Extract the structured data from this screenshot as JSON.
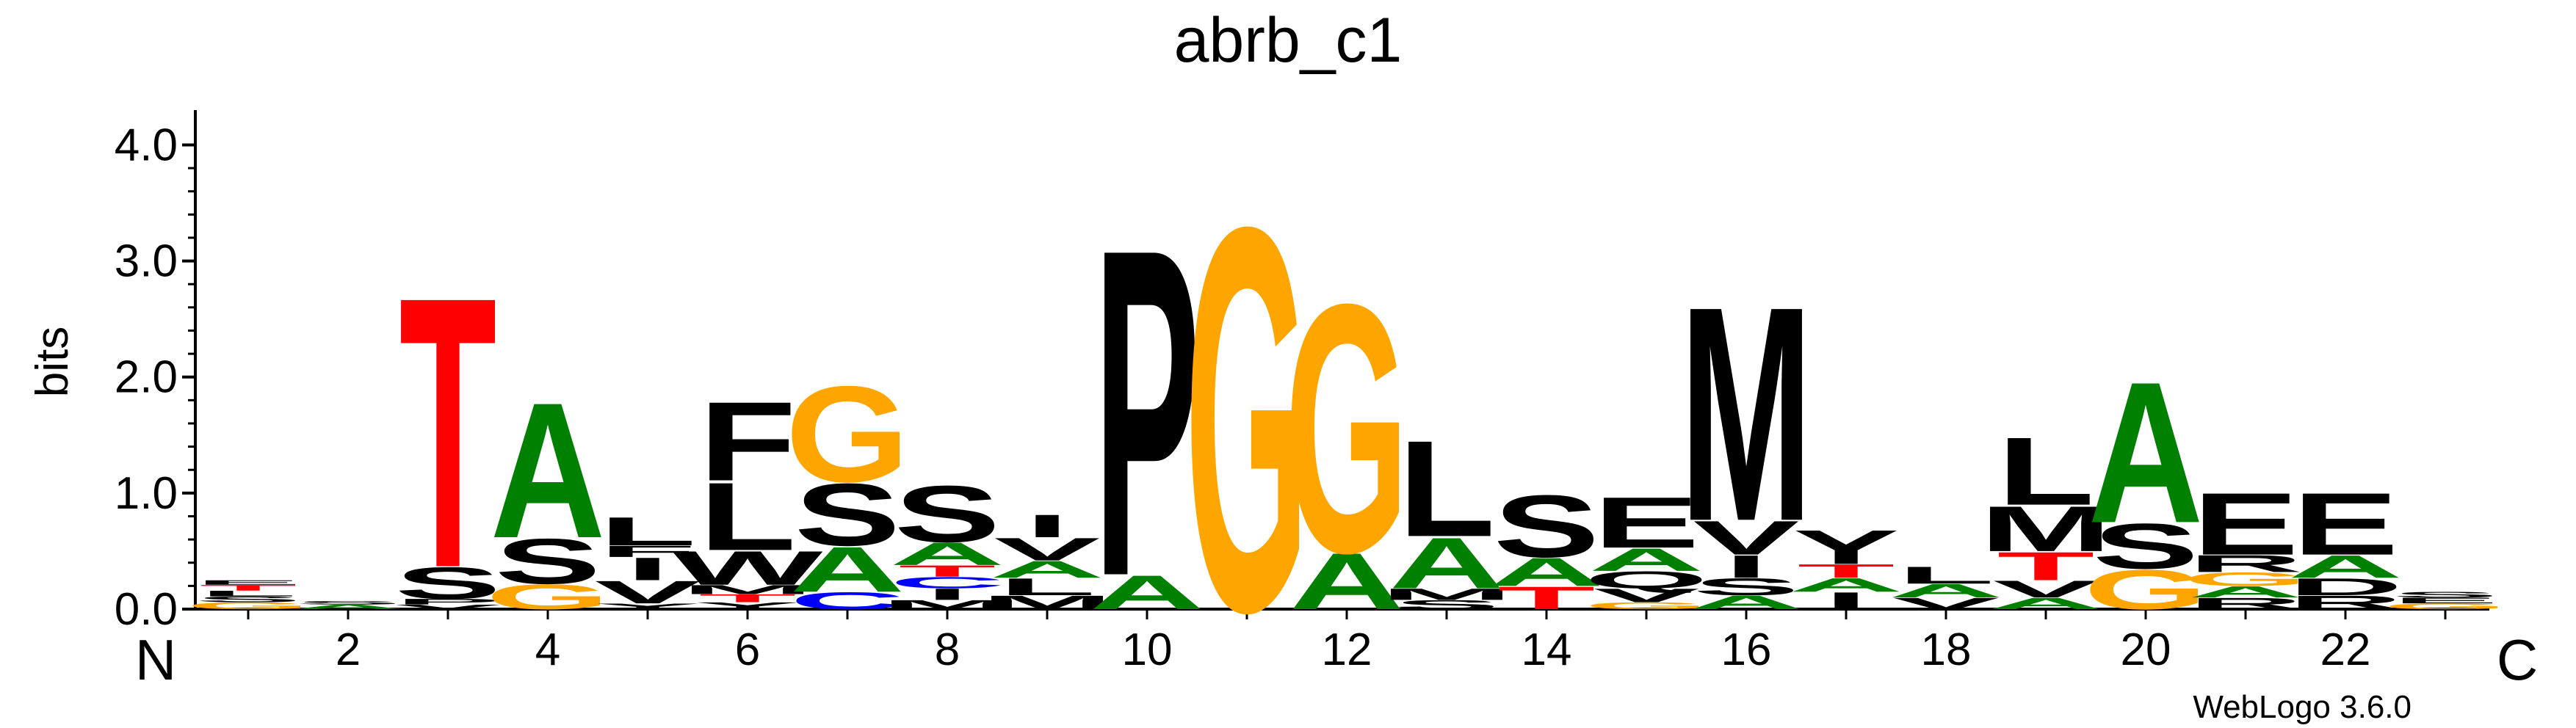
{
  "chart_data": {
    "type": "sequence-logo",
    "title": "abrb_c1",
    "ylabel": "bits",
    "ylim": [
      0,
      4.3
    ],
    "yticks": [
      "0.0",
      "1.0",
      "2.0",
      "3.0",
      "4.0"
    ],
    "xticks": [
      "2",
      "4",
      "6",
      "8",
      "10",
      "12",
      "14",
      "16",
      "18",
      "20",
      "22"
    ],
    "n_label": "N",
    "c_label": "C",
    "credit": "WebLogo 3.6.0",
    "colors": {
      "T": "#ff0000",
      "A": "#008000",
      "G": "#ffa500",
      "C": "#0000ff",
      "other": "#000000"
    },
    "positions": [
      {
        "pos": 1,
        "stack": [
          [
            "G",
            0.06
          ],
          [
            "S",
            0.05
          ],
          [
            "L",
            0.05
          ],
          [
            "T",
            0.05
          ],
          [
            "E",
            0.04
          ]
        ]
      },
      {
        "pos": 2,
        "stack": [
          [
            "A",
            0.04
          ],
          [
            "S",
            0.03
          ]
        ]
      },
      {
        "pos": 3,
        "stack": [
          [
            "V",
            0.04
          ],
          [
            "P",
            0.05
          ],
          [
            "S",
            0.28
          ],
          [
            "T",
            2.4
          ]
        ]
      },
      {
        "pos": 4,
        "stack": [
          [
            "G",
            0.22
          ],
          [
            "S",
            0.4
          ],
          [
            "A",
            1.2
          ]
        ]
      },
      {
        "pos": 5,
        "stack": [
          [
            "Y",
            0.05
          ],
          [
            "V",
            0.2
          ],
          [
            "I",
            0.2
          ],
          [
            "F",
            0.1
          ],
          [
            "L",
            0.25
          ]
        ]
      },
      {
        "pos": 6,
        "stack": [
          [
            "Y",
            0.06
          ],
          [
            "T",
            0.07
          ],
          [
            "M",
            0.08
          ],
          [
            "W",
            0.3
          ],
          [
            "L",
            0.6
          ],
          [
            "F",
            0.7
          ]
        ]
      },
      {
        "pos": 7,
        "stack": [
          [
            "C",
            0.15
          ],
          [
            "A",
            0.4
          ],
          [
            "S",
            0.55
          ],
          [
            "G",
            0.85
          ]
        ]
      },
      {
        "pos": 8,
        "stack": [
          [
            "M",
            0.08
          ],
          [
            "I",
            0.1
          ],
          [
            "C",
            0.1
          ],
          [
            "T",
            0.1
          ],
          [
            "A",
            0.2
          ],
          [
            "S",
            0.5
          ]
        ]
      },
      {
        "pos": 9,
        "stack": [
          [
            "M",
            0.12
          ],
          [
            "L",
            0.15
          ],
          [
            "A",
            0.15
          ],
          [
            "V",
            0.2
          ],
          [
            "I",
            0.2
          ]
        ]
      },
      {
        "pos": 10,
        "stack": [
          [
            "A",
            0.3
          ],
          [
            "P",
            2.9
          ]
        ]
      },
      {
        "pos": 11,
        "stack": [
          [
            "G",
            3.4
          ]
        ]
      },
      {
        "pos": 12,
        "stack": [
          [
            "A",
            0.5
          ],
          [
            "G",
            2.2
          ]
        ]
      },
      {
        "pos": 13,
        "stack": [
          [
            "S",
            0.08
          ],
          [
            "M",
            0.1
          ],
          [
            "A",
            0.45
          ],
          [
            "L",
            0.85
          ]
        ]
      },
      {
        "pos": 14,
        "stack": [
          [
            "T",
            0.2
          ],
          [
            "A",
            0.25
          ],
          [
            "S",
            0.55
          ]
        ]
      },
      {
        "pos": 15,
        "stack": [
          [
            "G",
            0.06
          ],
          [
            "V",
            0.12
          ],
          [
            "Q",
            0.15
          ],
          [
            "A",
            0.2
          ],
          [
            "E",
            0.45
          ]
        ]
      },
      {
        "pos": 16,
        "stack": [
          [
            "A",
            0.12
          ],
          [
            "S",
            0.15
          ],
          [
            "I",
            0.2
          ],
          [
            "V",
            0.3
          ],
          [
            "M",
            1.9
          ]
        ]
      },
      {
        "pos": 17,
        "stack": [
          [
            "I",
            0.15
          ],
          [
            "A",
            0.12
          ],
          [
            "T",
            0.12
          ],
          [
            "Y",
            0.3
          ]
        ]
      },
      {
        "pos": 18,
        "stack": [
          [
            "V",
            0.1
          ],
          [
            "A",
            0.12
          ],
          [
            "L",
            0.15
          ]
        ]
      },
      {
        "pos": 19,
        "stack": [
          [
            "A",
            0.1
          ],
          [
            "V",
            0.15
          ],
          [
            "T",
            0.25
          ],
          [
            "M",
            0.4
          ],
          [
            "L",
            0.6
          ]
        ]
      },
      {
        "pos": 20,
        "stack": [
          [
            "G",
            0.35
          ],
          [
            "S",
            0.4
          ],
          [
            "A",
            1.25
          ]
        ]
      },
      {
        "pos": 21,
        "stack": [
          [
            "R",
            0.1
          ],
          [
            "A",
            0.1
          ],
          [
            "G",
            0.12
          ],
          [
            "R",
            0.15
          ],
          [
            "E",
            0.55
          ]
        ]
      },
      {
        "pos": 22,
        "stack": [
          [
            "R",
            0.12
          ],
          [
            "D",
            0.15
          ],
          [
            "A",
            0.2
          ],
          [
            "E",
            0.55
          ]
        ]
      },
      {
        "pos": 23,
        "stack": [
          [
            "G",
            0.05
          ],
          [
            "E",
            0.05
          ],
          [
            "S",
            0.05
          ]
        ]
      }
    ]
  }
}
